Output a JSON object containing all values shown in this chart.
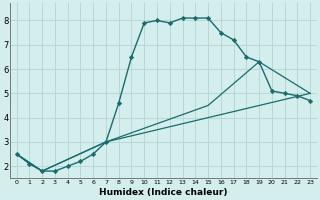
{
  "xlabel": "Humidex (Indice chaleur)",
  "background_color": "#d4eeee",
  "grid_color": "#b8d8d8",
  "line_color": "#1a6b6b",
  "xlim": [
    -0.5,
    23.5
  ],
  "ylim": [
    1.5,
    8.7
  ],
  "yticks": [
    2,
    3,
    4,
    5,
    6,
    7,
    8
  ],
  "xticks": [
    0,
    1,
    2,
    3,
    4,
    5,
    6,
    7,
    8,
    9,
    10,
    11,
    12,
    13,
    14,
    15,
    16,
    17,
    18,
    19,
    20,
    21,
    22,
    23
  ],
  "line1_x": [
    0,
    1,
    2,
    3,
    4,
    5,
    6,
    7,
    8,
    9,
    10,
    11,
    12,
    13,
    14,
    15,
    16,
    17,
    18,
    19,
    20,
    21,
    22,
    23
  ],
  "line1_y": [
    2.5,
    2.1,
    1.8,
    1.8,
    2.0,
    2.2,
    2.5,
    3.0,
    4.6,
    6.5,
    7.9,
    8.0,
    7.9,
    8.1,
    8.1,
    8.1,
    7.5,
    7.2,
    6.5,
    6.3,
    5.1,
    5.0,
    4.9,
    4.7
  ],
  "line2_x": [
    0,
    2,
    7,
    15,
    19,
    23
  ],
  "line2_y": [
    2.5,
    1.8,
    3.0,
    4.5,
    6.3,
    5.0
  ],
  "line3_x": [
    0,
    2,
    7,
    23
  ],
  "line3_y": [
    2.5,
    1.8,
    3.0,
    5.0
  ]
}
